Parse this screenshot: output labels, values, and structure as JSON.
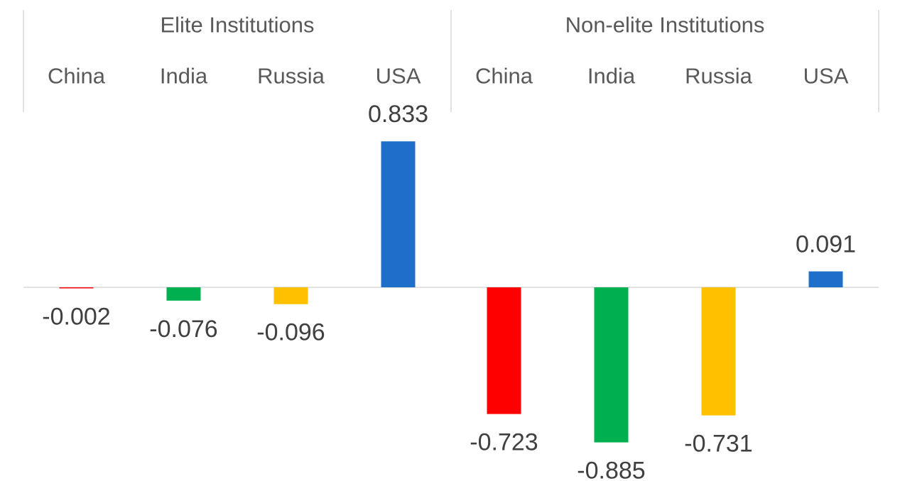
{
  "chart_data": {
    "type": "bar",
    "groups": [
      {
        "name": "Elite Institutions",
        "categories": [
          "China",
          "India",
          "Russia",
          "USA"
        ],
        "values": [
          -0.002,
          -0.076,
          -0.096,
          0.833
        ],
        "value_labels": [
          "-0.002",
          "-0.076",
          "-0.096",
          "0.833"
        ]
      },
      {
        "name": "Non-elite Institutions",
        "categories": [
          "China",
          "India",
          "Russia",
          "USA"
        ],
        "values": [
          -0.723,
          -0.885,
          -0.731,
          0.091
        ],
        "value_labels": [
          "-0.723",
          "-0.885",
          "-0.731",
          "0.091"
        ]
      }
    ],
    "category_colors": {
      "China": "#ff0000",
      "India": "#00b050",
      "Russia": "#ffc000",
      "USA": "#1f6fca"
    },
    "axis_category_position": "top",
    "gridlines": false,
    "legend": "none",
    "ylim": [
      -0.885,
      0.833
    ]
  }
}
